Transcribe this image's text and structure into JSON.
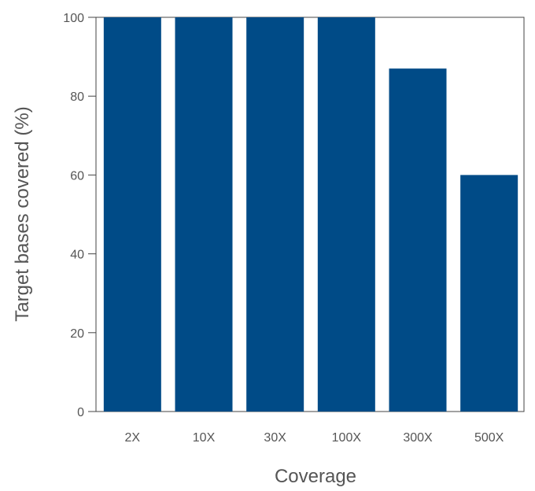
{
  "chart_data": {
    "type": "bar",
    "title": "",
    "xlabel": "Coverage",
    "ylabel": "Target bases covered (%)",
    "categories": [
      "2X",
      "10X",
      "30X",
      "100X",
      "300X",
      "500X"
    ],
    "values": [
      100,
      100,
      100,
      100,
      87,
      60
    ],
    "ylim": [
      0,
      100
    ],
    "yticks": [
      0,
      20,
      40,
      60,
      80,
      100
    ],
    "grid": false,
    "legend": "none",
    "bar_color": "#004b87",
    "axis_color": "#444444",
    "text_color": "#555555"
  }
}
